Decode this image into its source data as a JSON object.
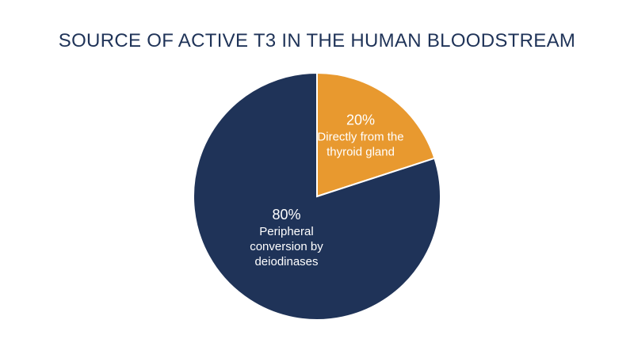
{
  "chart_data": {
    "type": "pie",
    "title": "SOURCE OF ACTIVE T3 IN THE HUMAN BLOODSTREAM",
    "categories": [
      "Directly from the thyroid gland",
      "Peripheral conversion by deiodinases"
    ],
    "values": [
      20,
      80
    ],
    "value_labels": [
      "20%",
      "80%"
    ],
    "colors": [
      "#e8992f",
      "#1f3358"
    ]
  }
}
